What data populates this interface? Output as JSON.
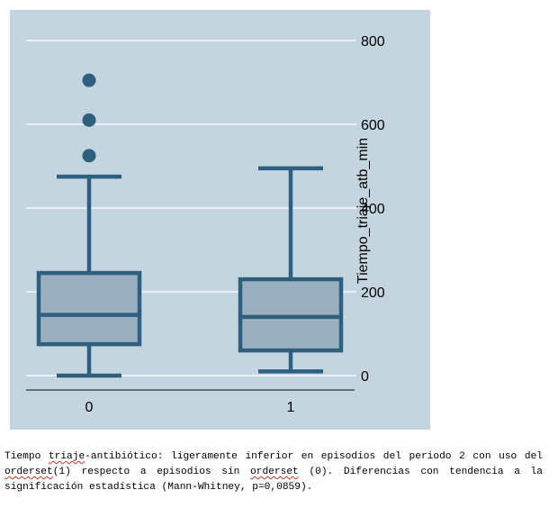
{
  "chart_data": {
    "type": "box",
    "title": "",
    "xlabel": "",
    "ylabel": "Tiempo_triaje_atb_min",
    "categories": [
      "0",
      "1"
    ],
    "yticks": [
      0,
      200,
      400,
      600,
      800
    ],
    "ylim": [
      0,
      800
    ],
    "grid": true,
    "boxes": [
      {
        "category": "0",
        "whisker_low": 0,
        "q1": 75,
        "median": 145,
        "q3": 245,
        "whisker_high": 475,
        "outliers": [
          525,
          610,
          705
        ]
      },
      {
        "category": "1",
        "whisker_low": 10,
        "q1": 60,
        "median": 140,
        "q3": 230,
        "whisker_high": 495,
        "outliers": []
      }
    ],
    "colors": {
      "panel_bg": "#c5d5e0",
      "grid": "#ffffff",
      "box_fill": "#9ab0bf",
      "box_stroke": "#2e5f7f",
      "outlier": "#2e5f7f",
      "axis": "#333333"
    }
  },
  "caption": {
    "parts": [
      {
        "text": "Tiempo ",
        "squiggle": false
      },
      {
        "text": "triaje",
        "squiggle": true
      },
      {
        "text": "-antibiótico: ligeramente inferior en episodios del periodo 2 con uso del ",
        "squiggle": false
      },
      {
        "text": "orderset",
        "squiggle": true
      },
      {
        "text": "(1) respecto a episodios sin ",
        "squiggle": false
      },
      {
        "text": "orderset",
        "squiggle": true
      },
      {
        "text": " (0). Diferencias con tendencia a la significación estadística (Mann-Whitney, p=0,0859).",
        "squiggle": false
      }
    ]
  }
}
